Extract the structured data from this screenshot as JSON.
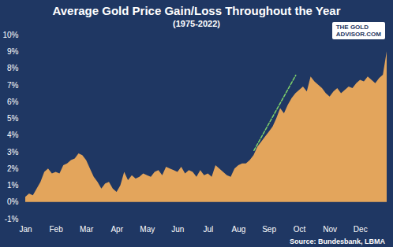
{
  "chart_data": {
    "type": "area",
    "title": "Average Gold Price Gain/Loss Throughout the Year",
    "subtitle": "(1975-2022)",
    "source": "Source: Bundesbank, LBMA",
    "logo": [
      "THE GOLD",
      "ADVISOR.COM"
    ],
    "color": "#e3a55c",
    "categories": [
      "Jan",
      null,
      null,
      null,
      null,
      null,
      null,
      null,
      "Feb",
      null,
      null,
      null,
      null,
      null,
      null,
      null,
      "Mar",
      null,
      null,
      null,
      null,
      null,
      null,
      null,
      "Apr",
      null,
      null,
      null,
      null,
      null,
      null,
      null,
      "May",
      null,
      null,
      null,
      null,
      null,
      null,
      null,
      "Jun",
      null,
      null,
      null,
      null,
      null,
      null,
      null,
      "Jul",
      null,
      null,
      null,
      null,
      null,
      null,
      null,
      "Aug",
      null,
      null,
      null,
      null,
      null,
      null,
      null,
      "Sep",
      null,
      null,
      null,
      null,
      null,
      null,
      null,
      "Oct",
      null,
      null,
      null,
      null,
      null,
      null,
      null,
      "Nov",
      null,
      null,
      null,
      null,
      null,
      null,
      null,
      "Dec",
      null,
      null,
      null,
      null,
      null,
      null,
      null
    ],
    "values": [
      0.3,
      0.5,
      0.4,
      0.8,
      1.2,
      1.8,
      2.0,
      1.7,
      1.8,
      1.7,
      2.2,
      2.3,
      2.5,
      2.6,
      2.9,
      2.8,
      2.5,
      2.0,
      1.5,
      1.2,
      0.8,
      1.1,
      1.2,
      0.8,
      0.6,
      1.0,
      1.8,
      1.3,
      1.6,
      1.4,
      1.5,
      1.7,
      1.6,
      1.5,
      1.8,
      1.9,
      1.6,
      2.1,
      2.0,
      1.9,
      1.8,
      2.1,
      1.7,
      1.9,
      1.8,
      1.5,
      1.9,
      1.6,
      1.7,
      1.5,
      2.2,
      2.0,
      1.8,
      1.6,
      1.5,
      2.0,
      2.2,
      2.3,
      2.3,
      2.5,
      2.8,
      3.3,
      3.6,
      3.9,
      4.2,
      4.5,
      5.0,
      5.6,
      5.3,
      5.8,
      6.2,
      6.5,
      6.7,
      6.9,
      6.6,
      7.5,
      7.2,
      7.0,
      6.8,
      6.5,
      6.3,
      6.6,
      6.8,
      6.5,
      6.7,
      6.9,
      6.8,
      7.1,
      7.3,
      7.2,
      7.5,
      7.3,
      7.1,
      7.4,
      7.6,
      9.0
    ],
    "trend_line": {
      "color": "#7fd36b",
      "line_style": "dashed",
      "values": [
        null,
        null,
        null,
        null,
        null,
        null,
        null,
        null,
        null,
        null,
        null,
        null,
        null,
        null,
        null,
        null,
        null,
        null,
        null,
        null,
        null,
        null,
        null,
        null,
        null,
        null,
        null,
        null,
        null,
        null,
        null,
        null,
        null,
        null,
        null,
        null,
        null,
        null,
        null,
        null,
        null,
        null,
        null,
        null,
        null,
        null,
        null,
        null,
        null,
        null,
        null,
        null,
        null,
        null,
        null,
        null,
        null,
        null,
        null,
        null,
        3.1,
        null,
        null,
        null,
        null,
        null,
        null,
        null,
        null,
        null,
        null,
        7.6,
        null,
        null,
        null,
        null,
        null,
        null,
        null,
        null,
        null,
        null,
        null,
        null,
        null,
        null,
        null,
        null,
        null,
        null,
        null,
        null,
        null,
        null,
        null,
        null
      ]
    },
    "ylim": [
      -1,
      10
    ],
    "yticks": [
      {
        "value": -1,
        "label": "-1%"
      },
      {
        "value": 0,
        "label": "0%"
      },
      {
        "value": 1,
        "label": "1%"
      },
      {
        "value": 2,
        "label": "2%"
      },
      {
        "value": 3,
        "label": "3%"
      },
      {
        "value": 4,
        "label": "4%"
      },
      {
        "value": 5,
        "label": "5%"
      },
      {
        "value": 6,
        "label": "6%"
      },
      {
        "value": 7,
        "label": "7%"
      },
      {
        "value": 8,
        "label": "8%"
      },
      {
        "value": 9,
        "label": "9%"
      },
      {
        "value": 10,
        "label": "10%"
      }
    ],
    "grid": false
  }
}
